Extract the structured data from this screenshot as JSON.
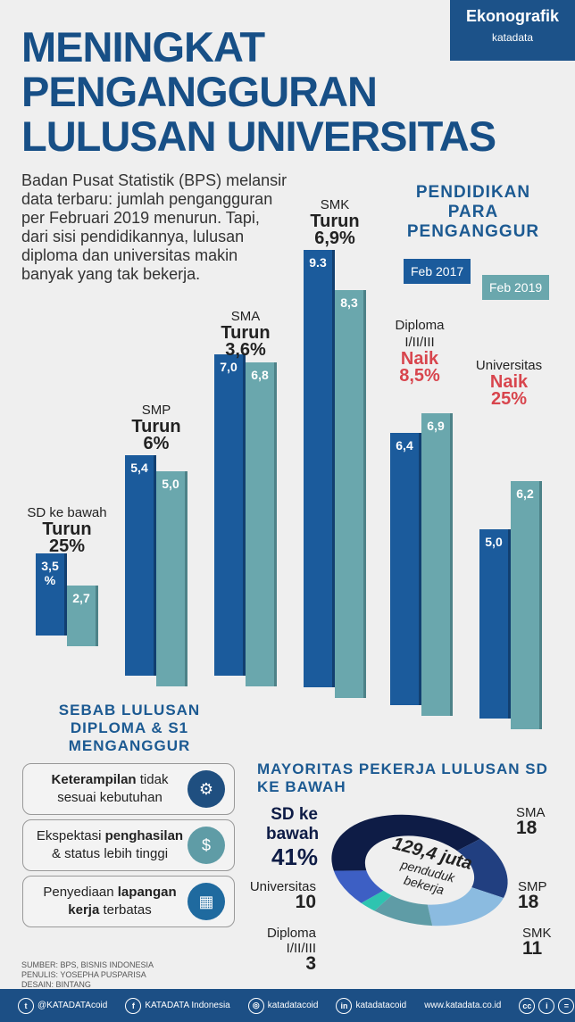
{
  "badge": {
    "title": "Ekonografik",
    "brand": "katadata"
  },
  "title": [
    "MENINGKAT",
    "PENGANGGURAN",
    "LULUSAN UNIVERSITAS"
  ],
  "intro": "Badan Pusat Statistik (BPS) melansir data terbaru: jumlah pengangguran per Februari 2019 menurun. Tapi, dari sisi pendidikannya, lulusan diploma dan universitas makin banyak yang tak bekerja.",
  "legend": {
    "title": "PENDIDIKAN PARA PENGANGGUR",
    "series": [
      "Feb 2017",
      "Feb 2019"
    ],
    "colors": [
      "#1b5b9c",
      "#6aa7ad"
    ]
  },
  "chart_data": [
    {
      "type": "bar",
      "title": "Pendidikan Para Penganggur",
      "categories": [
        "SD ke bawah",
        "SMP",
        "SMA",
        "SMK",
        "Diploma I/II/III",
        "Universitas"
      ],
      "series": [
        {
          "name": "Feb 2017",
          "values": [
            3.5,
            5.4,
            7.0,
            9.3,
            6.4,
            5.0
          ],
          "labels": [
            "3,5 %",
            "5,4",
            "7,0",
            "9.3",
            "6,4",
            "5,0"
          ]
        },
        {
          "name": "Feb 2019",
          "values": [
            2.7,
            5.0,
            6.8,
            8.3,
            6.9,
            6.2
          ],
          "labels": [
            "2,7",
            "5,0",
            "6,8",
            "8,3",
            "6,9",
            "6,2"
          ]
        }
      ],
      "changes": [
        {
          "dir": "Turun",
          "pct": "25%"
        },
        {
          "dir": "Turun",
          "pct": "6%"
        },
        {
          "dir": "Turun",
          "pct": "3,6%"
        },
        {
          "dir": "Turun",
          "pct": "6,9%"
        },
        {
          "dir": "Naik",
          "pct": "8,5%"
        },
        {
          "dir": "Naik",
          "pct": "25%"
        }
      ]
    },
    {
      "type": "pie",
      "title": "MAYORITAS PEKERJA LULUSAN SD KE BAWAH",
      "center": {
        "value": "129,4 juta",
        "label": "penduduk bekerja"
      },
      "categories": [
        "SD ke bawah",
        "SMA",
        "SMP",
        "SMK",
        "Diploma I/II/III",
        "Universitas"
      ],
      "values": [
        41,
        18,
        18,
        11,
        3,
        10
      ],
      "labels": [
        "41%",
        "18",
        "18",
        "11",
        "3",
        "10"
      ],
      "colors": [
        "#0e1c46",
        "#213f80",
        "#8bbbe0",
        "#5f9ca6",
        "#2ec4b0",
        "#3d5fc4"
      ]
    }
  ],
  "causes": {
    "title": "SEBAB LULUSAN DIPLOMA & S1 MENGANGGUR",
    "items": [
      {
        "bold": "Keterampilan",
        "rest": " tidak sesuai kebutuhan",
        "icon": "gear-person-icon"
      },
      {
        "pre": "Ekspektasi ",
        "bold": "penghasilan",
        "rest": " & status lebih tinggi",
        "icon": "hand-coin-icon"
      },
      {
        "pre": "Penyediaan ",
        "bold": "lapangan kerja",
        "rest": " terbatas",
        "icon": "buildings-icon"
      }
    ]
  },
  "credits": [
    "SUMBER: BPS, BISNIS INDONESIA",
    "PENULIS: YOSEPHA PUSPARISA",
    "DESAIN: BINTANG"
  ],
  "footer": {
    "twitter": "@KATADATAcoid",
    "facebook": "KATADATA Indonesia",
    "instagram": "katadatacoid",
    "linkedin": "katadatacoid",
    "website": "www.katadata.co.id"
  }
}
